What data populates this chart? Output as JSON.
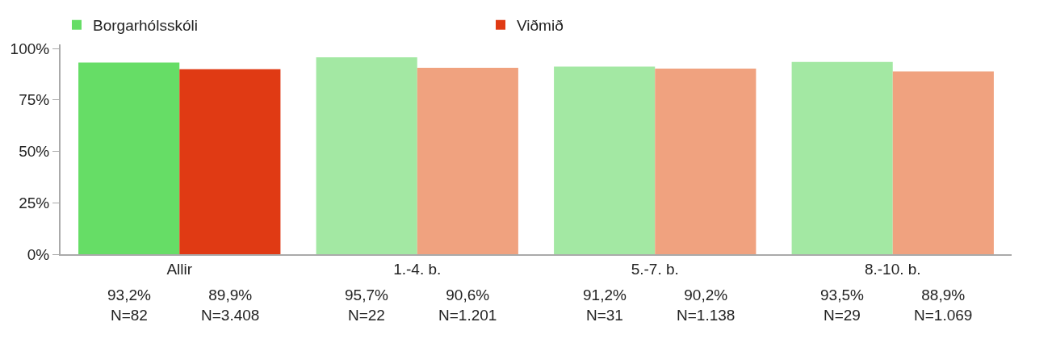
{
  "chart_data": {
    "type": "bar",
    "categories": [
      "Allir",
      "1.-4. b.",
      "5.-7. b.",
      "8.-10. b."
    ],
    "series": [
      {
        "name": "Borgarhólsskóli",
        "colors": [
          "#66dd66",
          "#a3e8a3",
          "#a3e8a3",
          "#a3e8a3"
        ],
        "values": [
          93.2,
          95.7,
          91.2,
          93.5
        ],
        "value_labels": [
          "93,2%\nN=82",
          "95,7%\nN=22",
          "91,2%\nN=31",
          "93,5%\nN=29"
        ]
      },
      {
        "name": "Viðmið",
        "colors": [
          "#e03a14",
          "#f0a27f",
          "#f0a27f",
          "#f0a27f"
        ],
        "values": [
          89.9,
          90.6,
          90.2,
          88.9
        ],
        "value_labels": [
          "89,9%\nN=3.408",
          "90,6%\nN=1.201",
          "90,2%\nN=1.138",
          "88,9%\nN=1.069"
        ]
      }
    ],
    "ylim": [
      0,
      102
    ],
    "yticks": [
      {
        "value": 0,
        "label": "0%"
      },
      {
        "value": 25,
        "label": "25%"
      },
      {
        "value": 50,
        "label": "50%"
      },
      {
        "value": 75,
        "label": "75%"
      },
      {
        "value": 100,
        "label": "100%"
      }
    ],
    "legend": "top left"
  }
}
